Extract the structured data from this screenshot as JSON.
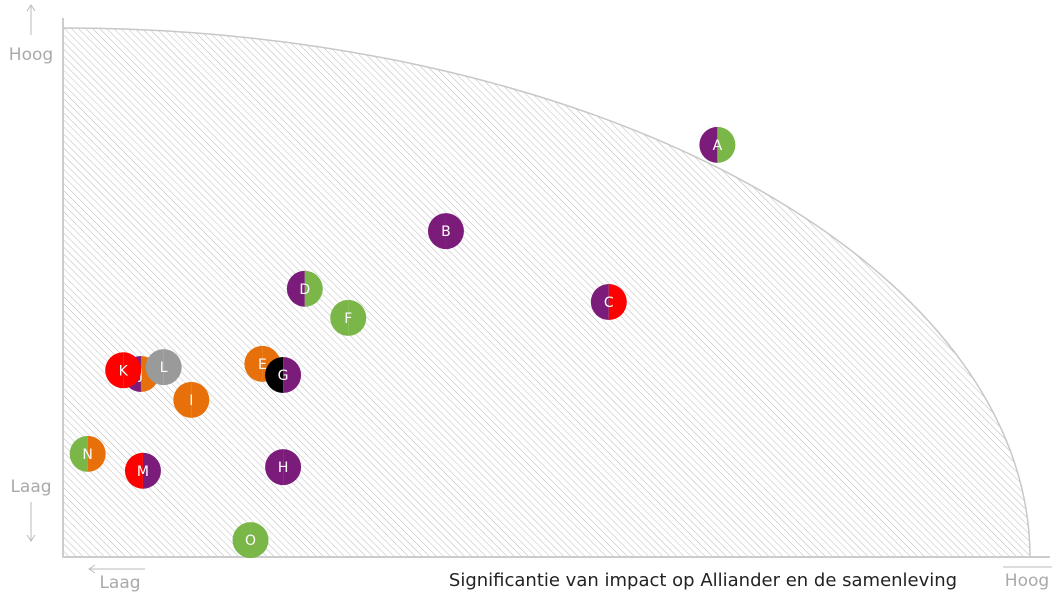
{
  "chart_data": {
    "type": "scatter",
    "x_label": "Significantie van impact op Alliander en de samenleving",
    "x_low_label": "Laag",
    "x_high_label": "Hoog",
    "y_low_label": "Laag",
    "y_high_label": "Hoog",
    "xlim": [
      0,
      100
    ],
    "ylim": [
      0,
      100
    ],
    "labels": [
      "A",
      "B",
      "C",
      "D",
      "E",
      "F",
      "G",
      "H",
      "I",
      "J",
      "K",
      "L",
      "M",
      "N",
      "O"
    ],
    "x": [
      66.3,
      38.8,
      55.3,
      24.5,
      20.2,
      28.9,
      22.3,
      22.3,
      13.0,
      7.9,
      6.1,
      10.2,
      8.1,
      2.5,
      19.0
    ],
    "y": [
      77.9,
      61.6,
      48.2,
      50.7,
      36.5,
      45.2,
      34.4,
      17.0,
      29.7,
      34.6,
      35.3,
      35.9,
      16.3,
      19.5,
      3.2
    ],
    "colors": [
      [
        "#7b1c7a",
        "#7ab648"
      ],
      [
        "#7b1c7a",
        "#7b1c7a"
      ],
      [
        "#7b1c7a",
        "#ff0000"
      ],
      [
        "#7b1c7a",
        "#7ab648"
      ],
      [
        "#e8700a",
        "#e8700a"
      ],
      [
        "#7ab648",
        "#7ab648"
      ],
      [
        "#000000",
        "#7b1c7a"
      ],
      [
        "#7b1c7a",
        "#7b1c7a"
      ],
      [
        "#e8700a",
        "#e8700a"
      ],
      [
        "#7b1c7a",
        "#e8700a"
      ],
      [
        "#ff0000",
        "#ff0000"
      ],
      [
        "#9a9a9a",
        "#9a9a9a"
      ],
      [
        "#ff0000",
        "#7b1c7a"
      ],
      [
        "#7ab648",
        "#e8700a"
      ],
      [
        "#7ab648",
        "#7ab648"
      ]
    ]
  }
}
